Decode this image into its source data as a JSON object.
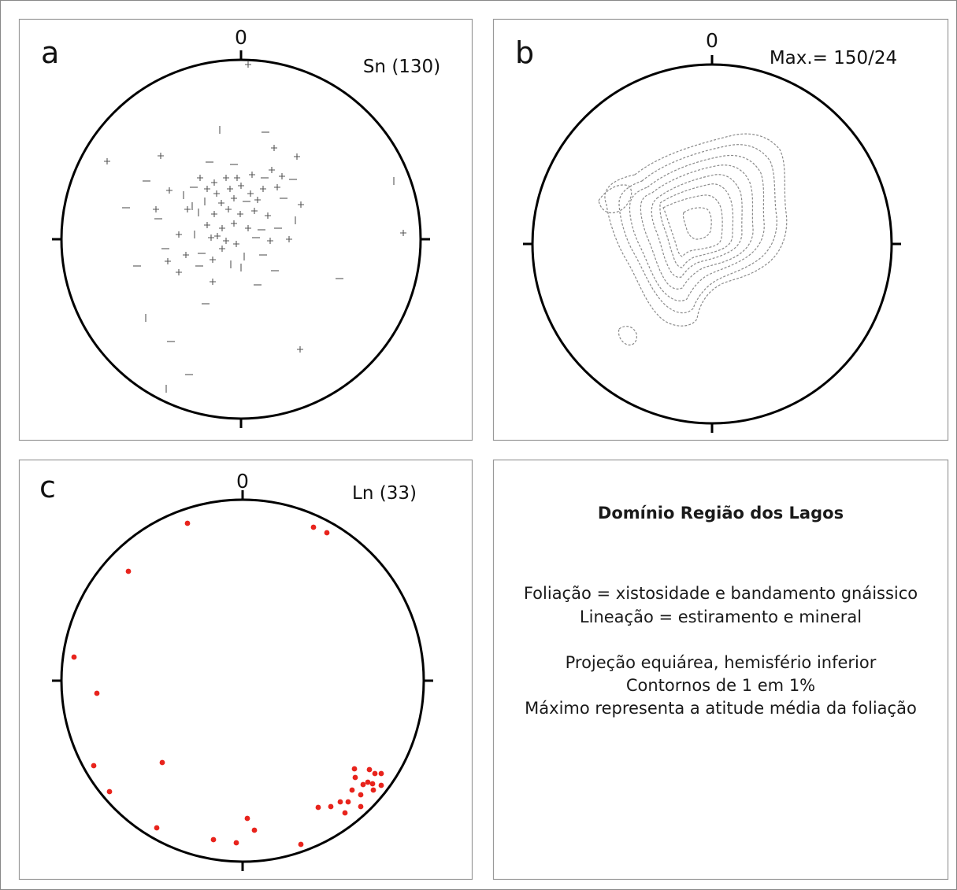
{
  "panels": {
    "a": {
      "letter": "a",
      "north_label": "0",
      "caption": "Sn (130)"
    },
    "b": {
      "letter": "b",
      "north_label": "0",
      "caption": "Max.= 150/24"
    },
    "c": {
      "letter": "c",
      "north_label": "0",
      "caption": "Ln (33)"
    }
  },
  "legend": {
    "title": "Domínio Região dos Lagos",
    "lines": [
      "Foliação = xistosidade e bandamento gnáissico",
      "Lineação = estiramento e mineral",
      "Projeção equiárea, hemisfério inferior",
      "Contornos de 1 em 1%",
      "Máximo representa a atitude média da foliação"
    ]
  },
  "colors": {
    "outline": "#000000",
    "pole_symbol": "#555555",
    "contour": "#888888",
    "lineation_point": "#e8231c"
  }
}
